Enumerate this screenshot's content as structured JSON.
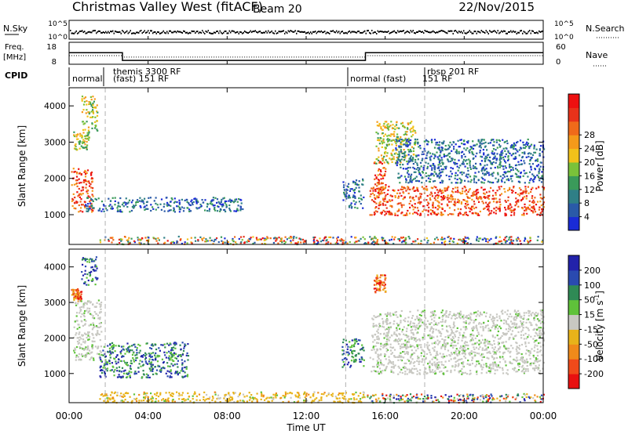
{
  "header": {
    "title": "Christmas Valley West (fitACF)",
    "beam": "Beam 20",
    "date": "22/Nov/2015"
  },
  "nsky_panel": {
    "left_label": "N.Sky",
    "right_label": "N.Search",
    "left_ticks": [
      "10^5",
      "10^0"
    ],
    "right_ticks": [
      "10^5",
      "10^0"
    ]
  },
  "freq_panel": {
    "left_label_top": "Freq.",
    "left_label_bottom": "[MHz]",
    "left_ticks": [
      "18",
      "8"
    ],
    "right_label": "Nave",
    "right_ticks": [
      "60",
      "0"
    ]
  },
  "cpid": {
    "label": "CPID",
    "segments": [
      {
        "start_h": 0.0,
        "lines": [
          "normal"
        ]
      },
      {
        "start_h": 1.83,
        "lines": [
          "themis 3300 RF",
          "(fast) 151 RF"
        ]
      },
      {
        "start_h": 14.0,
        "lines": [
          "normal (fast)"
        ]
      },
      {
        "start_h": 18.0,
        "lines": [
          "rbsp 201 RF",
          "151 RF"
        ]
      }
    ]
  },
  "power_panel": {
    "ylabel": "Slant Range [km]",
    "yticks": [
      "1000",
      "2000",
      "3000",
      "4000"
    ],
    "colorbar_label": "Power [dB]",
    "colorbar_ticks": [
      "4",
      "8",
      "12",
      "16",
      "20",
      "24",
      "28"
    ]
  },
  "velocity_panel": {
    "ylabel": "Slant Range [km]",
    "yticks": [
      "1000",
      "2000",
      "3000",
      "4000"
    ],
    "colorbar_label": "Velocity [m s",
    "colorbar_sup": "-1",
    "colorbar_label_end": "]",
    "colorbar_ticks": [
      "200",
      "100",
      "50",
      "15",
      "-15",
      "-50",
      "-100",
      "-200"
    ]
  },
  "xaxis": {
    "label": "Time UT",
    "ticks": [
      "00:00",
      "04:00",
      "08:00",
      "12:00",
      "16:00",
      "20:00",
      "00:00"
    ]
  },
  "chart_data": {
    "type": "heatmap",
    "x_unit": "hours UT",
    "xlim": [
      0,
      24
    ],
    "y_unit": "km",
    "ylim": [
      180,
      4500
    ],
    "mode_changes_h": [
      1.83,
      14.0,
      18.0
    ],
    "frequency_mhz": [
      {
        "from_h": 0,
        "to_h": 2.7,
        "value": 14.7
      },
      {
        "from_h": 2.7,
        "to_h": 15.0,
        "value": 10.2
      },
      {
        "from_h": 15.0,
        "to_h": 24,
        "value": 14.7
      }
    ],
    "nave_dotted": [
      {
        "from_h": 0,
        "to_h": 2.7,
        "value": 30
      },
      {
        "from_h": 2.7,
        "to_h": 15.0,
        "value": 25
      },
      {
        "from_h": 15.0,
        "to_h": 24,
        "value": 30
      }
    ],
    "scatter_regions": [
      {
        "panel": "power",
        "t0": 0.1,
        "t1": 1.2,
        "r0": 1100,
        "r1": 2300,
        "level": "high"
      },
      {
        "panel": "power",
        "t0": 0.2,
        "t1": 1.0,
        "r0": 2800,
        "r1": 3300,
        "level": "mid"
      },
      {
        "panel": "power",
        "t0": 0.6,
        "t1": 1.4,
        "r0": 3300,
        "r1": 4300,
        "level": "mid"
      },
      {
        "panel": "power",
        "t0": 0.8,
        "t1": 8.8,
        "r0": 1100,
        "r1": 1500,
        "level": "low"
      },
      {
        "panel": "power",
        "t0": 1.5,
        "t1": 15.0,
        "r0": 200,
        "r1": 420,
        "level": "mixed"
      },
      {
        "panel": "power",
        "t0": 13.8,
        "t1": 14.9,
        "r0": 1200,
        "r1": 2000,
        "level": "low"
      },
      {
        "panel": "power",
        "t0": 15.2,
        "t1": 24.0,
        "r0": 1000,
        "r1": 1800,
        "level": "high"
      },
      {
        "panel": "power",
        "t0": 15.4,
        "t1": 16.0,
        "r0": 1600,
        "r1": 2500,
        "level": "high"
      },
      {
        "panel": "power",
        "t0": 15.5,
        "t1": 17.5,
        "r0": 2400,
        "r1": 3600,
        "level": "mid"
      },
      {
        "panel": "power",
        "t0": 16.5,
        "t1": 24.0,
        "r0": 1900,
        "r1": 3100,
        "level": "low"
      },
      {
        "panel": "power",
        "t0": 15.0,
        "t1": 24.0,
        "r0": 200,
        "r1": 420,
        "level": "mixed"
      },
      {
        "panel": "velocity",
        "t0": 0.1,
        "t1": 0.6,
        "r0": 3050,
        "r1": 3400,
        "level": "neg"
      },
      {
        "panel": "velocity",
        "t0": 0.6,
        "t1": 1.4,
        "r0": 3500,
        "r1": 4300,
        "level": "pos"
      },
      {
        "panel": "velocity",
        "t0": 0.2,
        "t1": 1.6,
        "r0": 1400,
        "r1": 3100,
        "level": "gs"
      },
      {
        "panel": "velocity",
        "t0": 1.5,
        "t1": 6.0,
        "r0": 900,
        "r1": 1900,
        "level": "pos"
      },
      {
        "panel": "velocity",
        "t0": 1.5,
        "t1": 15.0,
        "r0": 200,
        "r1": 500,
        "level": "slowneg"
      },
      {
        "panel": "velocity",
        "t0": 13.8,
        "t1": 14.9,
        "r0": 1200,
        "r1": 2000,
        "level": "pos"
      },
      {
        "panel": "velocity",
        "t0": 15.2,
        "t1": 24.0,
        "r0": 1000,
        "r1": 1800,
        "level": "gs"
      },
      {
        "panel": "velocity",
        "t0": 15.3,
        "t1": 16.2,
        "r0": 1700,
        "r1": 2700,
        "level": "gs"
      },
      {
        "panel": "velocity",
        "t0": 15.4,
        "t1": 16.0,
        "r0": 3300,
        "r1": 3800,
        "level": "neg"
      },
      {
        "panel": "velocity",
        "t0": 16.0,
        "t1": 24.0,
        "r0": 1800,
        "r1": 2800,
        "level": "gs"
      },
      {
        "panel": "velocity",
        "t0": 15.0,
        "t1": 24.0,
        "r0": 200,
        "r1": 450,
        "level": "mixed"
      }
    ]
  }
}
